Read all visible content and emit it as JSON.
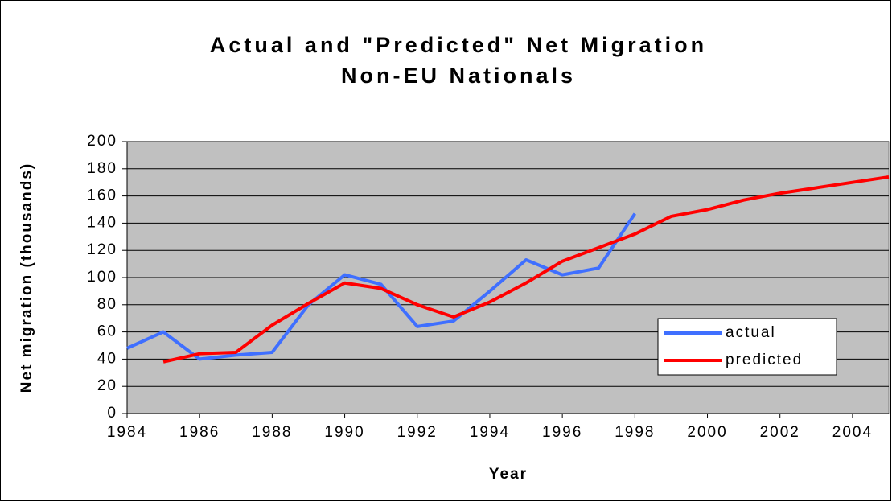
{
  "chart_data": {
    "type": "line",
    "title": "Actual and \"Predicted\" Net Migration",
    "subtitle": "Non-EU Nationals",
    "x_label": "Year",
    "y_label": "Net migration (thousands)",
    "x": [
      1984,
      1985,
      1986,
      1987,
      1988,
      1989,
      1990,
      1991,
      1992,
      1993,
      1994,
      1995,
      1996,
      1997,
      1998,
      1999,
      2000,
      2001,
      2002,
      2003,
      2004,
      2005
    ],
    "series": [
      {
        "name": "actual",
        "color": "#3f6fff",
        "values": [
          48,
          60,
          40,
          43,
          45,
          80,
          102,
          95,
          64,
          68,
          90,
          113,
          102,
          107,
          147,
          null,
          null,
          null,
          null,
          null,
          null,
          null
        ]
      },
      {
        "name": "predicted",
        "color": "#ff0000",
        "values": [
          null,
          38,
          44,
          45,
          65,
          81,
          96,
          92,
          80,
          71,
          82,
          96,
          112,
          122,
          132,
          145,
          150,
          157,
          162,
          166,
          170,
          174
        ]
      }
    ],
    "xlim": [
      1984,
      2005
    ],
    "xticks": [
      1984,
      1986,
      1988,
      1990,
      1992,
      1994,
      1996,
      1998,
      2000,
      2002,
      2004
    ],
    "ylim": [
      0,
      200
    ],
    "yticks": [
      0,
      20,
      40,
      60,
      80,
      100,
      120,
      140,
      160,
      180,
      200
    ],
    "grid": true,
    "legend": "lower right",
    "plot_background": "#c0c0c0"
  }
}
